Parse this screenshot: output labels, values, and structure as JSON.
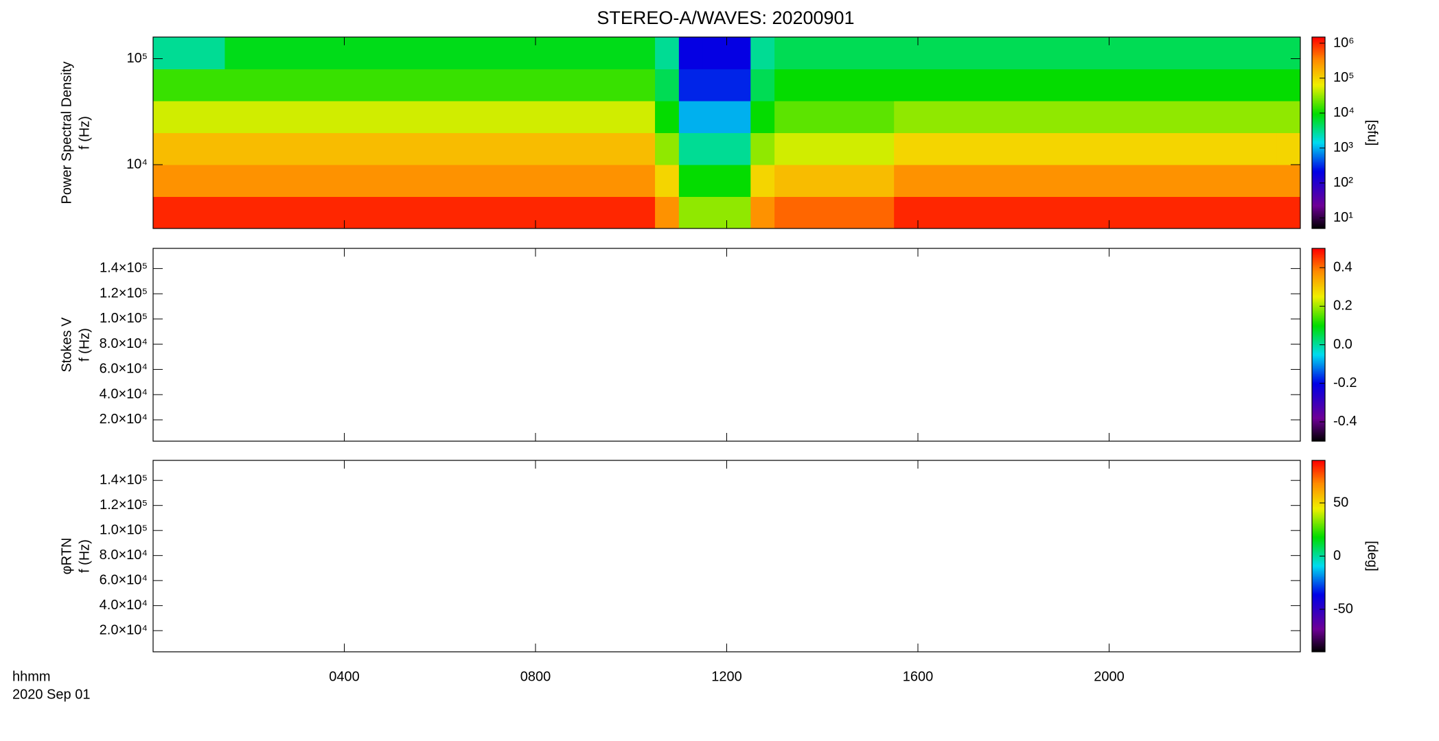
{
  "title": "STEREO-A/WAVES: 20200901",
  "time_axis": {
    "label": "hhmm",
    "date": "2020 Sep 01",
    "xlim": [
      0,
      24
    ],
    "xticks": [
      {
        "value": 4,
        "label": "0400"
      },
      {
        "value": 8,
        "label": "0800"
      },
      {
        "value": 12,
        "label": "1200"
      },
      {
        "value": 16,
        "label": "1600"
      },
      {
        "value": 20,
        "label": "2000"
      }
    ]
  },
  "chart_data": [
    {
      "type": "heatmap",
      "ylabel": [
        "Power Spectral Density",
        "f (Hz)"
      ],
      "ylog": true,
      "ylim": [
        2500,
        160000
      ],
      "yticks": [
        {
          "value": 10000,
          "label": "10⁴"
        },
        {
          "value": 100000,
          "label": "10⁵"
        }
      ],
      "zlabel": "[sfu]",
      "zlog": true,
      "zlim": [
        5,
        1500000
      ],
      "zticks": [
        {
          "value": 10,
          "label": "10¹"
        },
        {
          "value": 100,
          "label": "10²"
        },
        {
          "value": 1000,
          "label": "10³"
        },
        {
          "value": 10000,
          "label": "10⁴"
        },
        {
          "value": 100000,
          "label": "10⁵"
        },
        {
          "value": 1000000,
          "label": "10⁶"
        }
      ],
      "x_edges": [
        0,
        0.5,
        1,
        1.5,
        2,
        2.5,
        3,
        3.5,
        4,
        4.5,
        5,
        5.5,
        6,
        6.5,
        7,
        7.5,
        8,
        8.5,
        9,
        9.5,
        10,
        10.5,
        11,
        11.5,
        12,
        12.5,
        13,
        13.5,
        14,
        14.5,
        15,
        15.5,
        16,
        16.5,
        17,
        17.5,
        18,
        18.5,
        19,
        19.5,
        20,
        20.5,
        21,
        21.5,
        22,
        22.5,
        23,
        23.5,
        24
      ],
      "y_edges": [
        2500,
        5000,
        10000,
        20000,
        40000,
        80000,
        160000
      ],
      "z": [
        [
          1000000,
          1000000,
          1000000,
          1000000,
          1000000,
          1000000,
          1000000,
          1000000,
          1000000,
          1000000,
          1000000,
          1000000,
          1000000,
          1000000,
          1000000,
          1000000,
          1000000,
          1000000,
          1000000,
          1000000,
          1000000,
          300000,
          30000,
          30000,
          30000,
          300000,
          500000,
          500000,
          500000,
          500000,
          500000,
          1000000,
          1000000,
          1000000,
          1000000,
          1000000,
          1000000,
          1000000,
          1000000,
          1000000,
          1000000,
          1000000,
          1000000,
          1000000,
          1000000,
          1000000,
          1000000,
          1000000
        ],
        [
          300000,
          300000,
          300000,
          300000,
          300000,
          300000,
          300000,
          300000,
          300000,
          300000,
          300000,
          300000,
          300000,
          300000,
          300000,
          300000,
          300000,
          300000,
          300000,
          300000,
          300000,
          100000,
          10000,
          10000,
          10000,
          100000,
          150000,
          150000,
          150000,
          150000,
          150000,
          300000,
          300000,
          300000,
          300000,
          300000,
          300000,
          300000,
          300000,
          300000,
          300000,
          300000,
          300000,
          300000,
          300000,
          300000,
          300000,
          300000
        ],
        [
          150000,
          150000,
          150000,
          150000,
          150000,
          150000,
          150000,
          150000,
          150000,
          150000,
          150000,
          150000,
          150000,
          150000,
          150000,
          150000,
          150000,
          150000,
          150000,
          150000,
          150000,
          30000,
          3000,
          3000,
          3000,
          30000,
          50000,
          50000,
          50000,
          50000,
          50000,
          100000,
          100000,
          100000,
          100000,
          100000,
          100000,
          100000,
          100000,
          100000,
          100000,
          100000,
          100000,
          100000,
          100000,
          100000,
          100000,
          100000
        ],
        [
          50000,
          50000,
          50000,
          50000,
          50000,
          50000,
          50000,
          50000,
          50000,
          50000,
          50000,
          50000,
          50000,
          50000,
          50000,
          50000,
          50000,
          50000,
          50000,
          50000,
          50000,
          10000,
          1000,
          1000,
          1000,
          10000,
          20000,
          20000,
          20000,
          20000,
          20000,
          30000,
          30000,
          30000,
          30000,
          30000,
          30000,
          30000,
          30000,
          30000,
          30000,
          30000,
          30000,
          30000,
          30000,
          30000,
          30000,
          30000
        ],
        [
          15000,
          15000,
          15000,
          15000,
          15000,
          15000,
          15000,
          15000,
          15000,
          15000,
          15000,
          15000,
          15000,
          15000,
          15000,
          15000,
          15000,
          15000,
          15000,
          15000,
          15000,
          5000,
          300,
          300,
          300,
          5000,
          10000,
          10000,
          10000,
          10000,
          10000,
          10000,
          10000,
          10000,
          10000,
          10000,
          10000,
          10000,
          10000,
          10000,
          10000,
          10000,
          10000,
          10000,
          10000,
          10000,
          10000,
          10000
        ],
        [
          3000,
          3000,
          3000,
          8000,
          8000,
          8000,
          8000,
          8000,
          8000,
          8000,
          8000,
          8000,
          8000,
          8000,
          8000,
          8000,
          8000,
          8000,
          8000,
          8000,
          8000,
          3000,
          200,
          200,
          200,
          3000,
          5000,
          5000,
          5000,
          5000,
          5000,
          5000,
          5000,
          5000,
          5000,
          5000,
          5000,
          5000,
          5000,
          5000,
          5000,
          5000,
          5000,
          5000,
          5000,
          5000,
          5000,
          5000
        ]
      ]
    },
    {
      "type": "heatmap",
      "ylabel": [
        "Stokes V",
        "f (Hz)"
      ],
      "ylim": [
        3100,
        156000
      ],
      "yticks": [
        {
          "value": 20000,
          "label": "2.0×10⁴"
        },
        {
          "value": 40000,
          "label": "4.0×10⁴"
        },
        {
          "value": 60000,
          "label": "6.0×10⁴"
        },
        {
          "value": 80000,
          "label": "8.0×10⁴"
        },
        {
          "value": 100000,
          "label": "1.0×10⁵"
        },
        {
          "value": 120000,
          "label": "1.2×10⁵"
        },
        {
          "value": 140000,
          "label": "1.4×10⁵"
        }
      ],
      "zlim": [
        -0.5,
        0.5
      ],
      "zticks": [
        {
          "value": -0.4,
          "label": "-0.4"
        },
        {
          "value": -0.2,
          "label": "-0.2"
        },
        {
          "value": 0,
          "label": "0.0"
        },
        {
          "value": 0.2,
          "label": "0.2"
        },
        {
          "value": 0.4,
          "label": "0.4"
        }
      ]
    },
    {
      "type": "heatmap",
      "ylabel": [
        "φRTN",
        "f (Hz)"
      ],
      "ylim": [
        3100,
        156000
      ],
      "yticks": [
        {
          "value": 20000,
          "label": "2.0×10⁴"
        },
        {
          "value": 40000,
          "label": "4.0×10⁴"
        },
        {
          "value": 60000,
          "label": "6.0×10⁴"
        },
        {
          "value": 80000,
          "label": "8.0×10⁴"
        },
        {
          "value": 100000,
          "label": "1.0×10⁵"
        },
        {
          "value": 120000,
          "label": "1.2×10⁵"
        },
        {
          "value": 140000,
          "label": "1.4×10⁵"
        }
      ],
      "zlabel": "[deg]",
      "zlim": [
        -90,
        90
      ],
      "zticks": [
        -50,
        0,
        50
      ]
    }
  ]
}
